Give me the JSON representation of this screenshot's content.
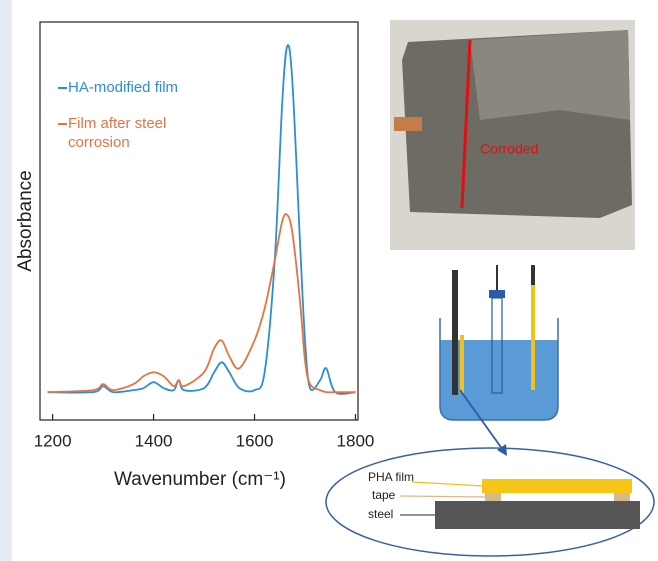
{
  "chart_data": {
    "type": "line",
    "x_label": "Wavenumber (cm⁻¹)",
    "y_label": "Absorbance",
    "x": [
      1190,
      1280,
      1300,
      1320,
      1360,
      1380,
      1400,
      1420,
      1440,
      1450,
      1460,
      1500,
      1520,
      1535,
      1550,
      1570,
      1600,
      1620,
      1640,
      1655,
      1665,
      1675,
      1690,
      1700,
      1710,
      1730,
      1742,
      1760,
      1800
    ],
    "series": [
      {
        "name": "HA-modified film",
        "color": "#2a8fd6",
        "values": [
          0.07,
          0.07,
          0.085,
          0.07,
          0.075,
          0.08,
          0.095,
          0.08,
          0.075,
          0.1,
          0.075,
          0.08,
          0.12,
          0.145,
          0.12,
          0.08,
          0.075,
          0.12,
          0.4,
          0.8,
          0.94,
          0.85,
          0.45,
          0.2,
          0.08,
          0.1,
          0.13,
          0.07,
          0.07
        ]
      },
      {
        "name": "Film after steel corrosion",
        "color": "#e8733f",
        "values": [
          0.07,
          0.075,
          0.09,
          0.075,
          0.09,
          0.11,
          0.12,
          0.11,
          0.085,
          0.1,
          0.085,
          0.12,
          0.18,
          0.2,
          0.16,
          0.13,
          0.2,
          0.28,
          0.4,
          0.5,
          0.515,
          0.47,
          0.3,
          0.15,
          0.09,
          0.075,
          0.07,
          0.07,
          0.07
        ]
      }
    ],
    "xlim": [
      1175,
      1805
    ],
    "xticks": [
      1200,
      1400,
      1600,
      1800
    ],
    "ylim": [
      0,
      1
    ],
    "legend": "upper-left"
  },
  "photo": {
    "label": "Corroded"
  },
  "diagram": {
    "layers": [
      "PHA film",
      "tape",
      "steel"
    ]
  }
}
